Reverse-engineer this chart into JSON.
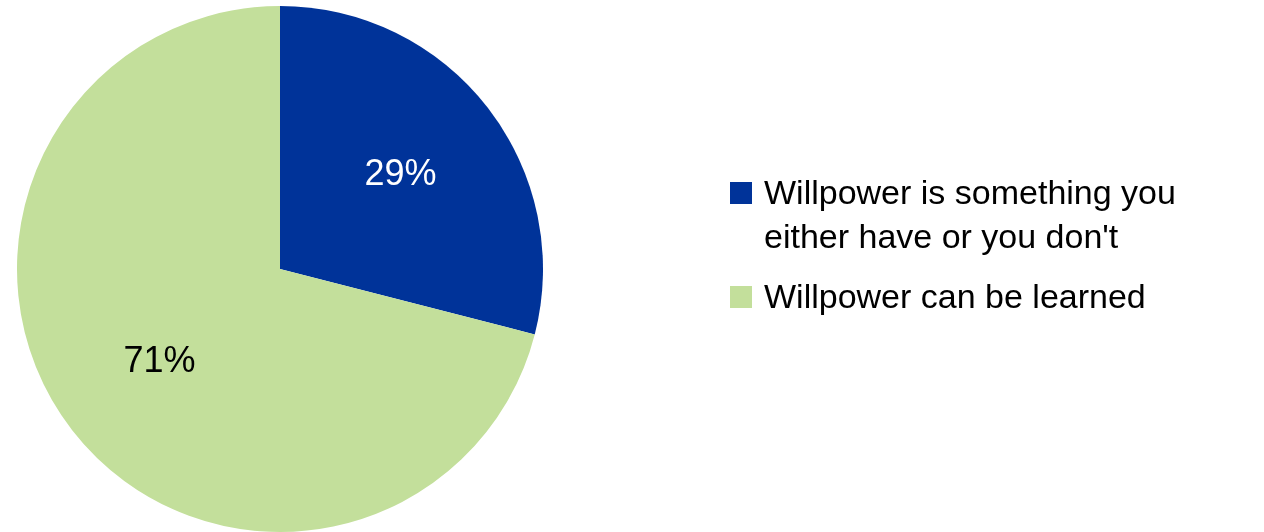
{
  "chart_data": {
    "type": "pie",
    "categories": [
      "Willpower is something you either have or you don't",
      "Willpower can be learned"
    ],
    "values": [
      29,
      71
    ],
    "colors": [
      "#003399",
      "#c3df9b"
    ],
    "value_labels": [
      "29%",
      "71%"
    ],
    "legend": "right"
  }
}
